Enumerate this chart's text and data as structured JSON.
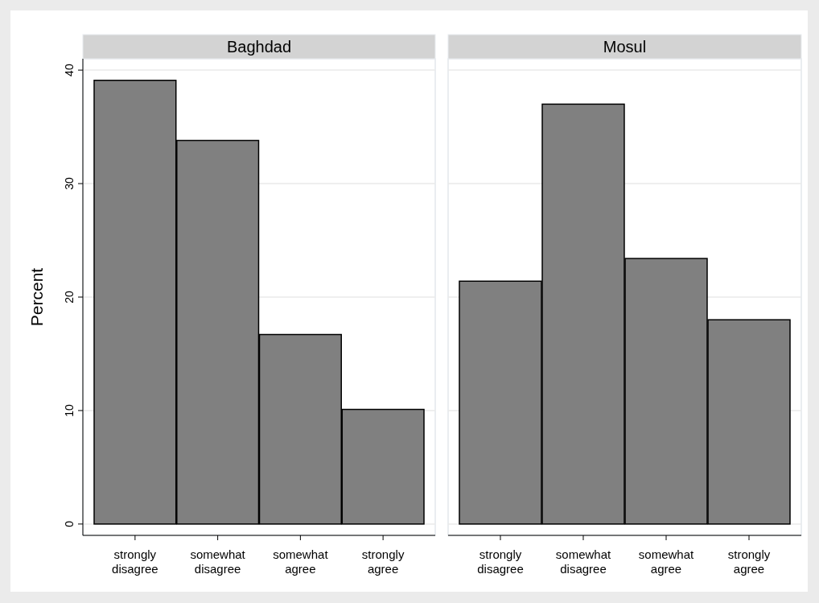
{
  "chart_data": [
    {
      "type": "bar",
      "title": "Baghdad",
      "ylabel": "Percent",
      "categories": [
        "strongly disagree",
        "somewhat disagree",
        "somewhat agree",
        "strongly agree"
      ],
      "values": [
        39.1,
        33.8,
        16.7,
        10.1
      ],
      "color": "#808080",
      "ylim": [
        -1,
        41
      ],
      "yticks": [
        0,
        10,
        20,
        30,
        40
      ],
      "grid": "y"
    },
    {
      "type": "bar",
      "title": "Mosul",
      "categories": [
        "strongly disagree",
        "somewhat disagree",
        "somewhat agree",
        "strongly agree"
      ],
      "values": [
        21.4,
        37.0,
        23.4,
        18.0
      ],
      "color": "#808080",
      "ylim": [
        -1,
        41
      ],
      "yticks": [
        0,
        10,
        20,
        30,
        40
      ],
      "grid": "y",
      "tick_labels": "x"
    }
  ]
}
